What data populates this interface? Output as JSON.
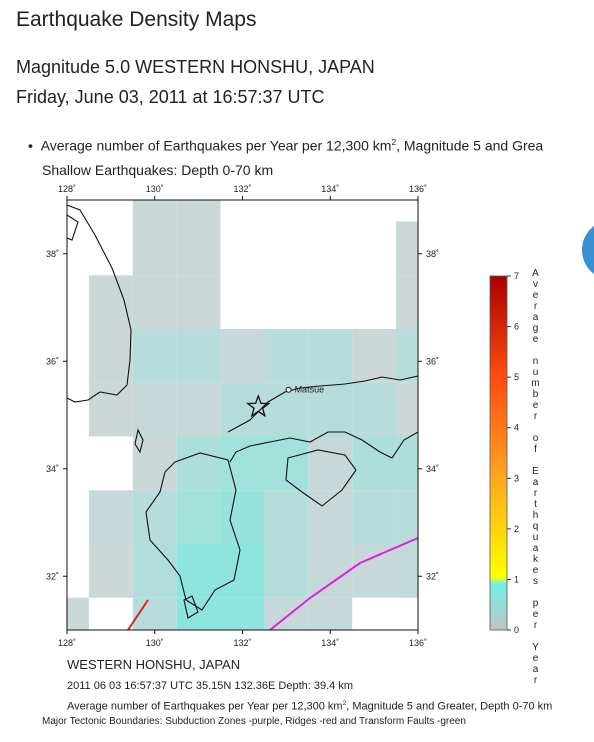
{
  "header": {
    "title": "Earthquake Density Maps",
    "subtitle": "Magnitude 5.0 WESTERN HONSHU, JAPAN",
    "datetime": "Friday, June 03, 2011 at 16:57:37 UTC"
  },
  "intro": {
    "text_before": "Average number of Earthquakes per Year per 12,300 km",
    "sup": "2",
    "text_after": ", Magnitude 5 and Grea",
    "depth": "Shallow Earthquakes: Depth 0-70 km"
  },
  "map": {
    "xlim": [
      128,
      136
    ],
    "ylim": [
      31,
      39
    ],
    "xticks": [
      {
        "value": 128,
        "label": "128˚"
      },
      {
        "value": 130,
        "label": "130˚"
      },
      {
        "value": 132,
        "label": "132˚"
      },
      {
        "value": 134,
        "label": "134˚"
      },
      {
        "value": 136,
        "label": "136˚"
      }
    ],
    "yticks": [
      {
        "value": 32,
        "label": "32˚"
      },
      {
        "value": 34,
        "label": "34˚"
      },
      {
        "value": 36,
        "label": "36˚"
      },
      {
        "value": 38,
        "label": "38˚"
      }
    ],
    "place": {
      "name": "Matsue",
      "lon": 133.05,
      "lat": 35.47
    },
    "epicenter": {
      "lon": 132.36,
      "lat": 35.15
    },
    "cells": [
      {
        "lon": 130,
        "lat": 39.1,
        "value": 0.1
      },
      {
        "lon": 131,
        "lat": 39.1,
        "value": 0.1
      },
      {
        "lon": 130,
        "lat": 38.1,
        "value": 0.1
      },
      {
        "lon": 131,
        "lat": 38.1,
        "value": 0.1
      },
      {
        "lon": 136,
        "lat": 38.1,
        "value": 0.1
      },
      {
        "lon": 129,
        "lat": 37.1,
        "value": 0.1
      },
      {
        "lon": 130,
        "lat": 37.1,
        "value": 0.1
      },
      {
        "lon": 131,
        "lat": 37.1,
        "value": 0.1
      },
      {
        "lon": 136,
        "lat": 37.1,
        "value": 0.1
      },
      {
        "lon": 129,
        "lat": 36.1,
        "value": 0.1
      },
      {
        "lon": 130,
        "lat": 36.1,
        "value": 0.3
      },
      {
        "lon": 131,
        "lat": 36.1,
        "value": 0.3
      },
      {
        "lon": 132,
        "lat": 36.1,
        "value": 0.15
      },
      {
        "lon": 133,
        "lat": 36.1,
        "value": 0.3
      },
      {
        "lon": 134,
        "lat": 36.1,
        "value": 0.3
      },
      {
        "lon": 135,
        "lat": 36.1,
        "value": 0.1
      },
      {
        "lon": 136,
        "lat": 36.1,
        "value": 0.3
      },
      {
        "lon": 129,
        "lat": 35.1,
        "value": 0.1
      },
      {
        "lon": 130,
        "lat": 35.1,
        "value": 0.15
      },
      {
        "lon": 131,
        "lat": 35.1,
        "value": 0.15
      },
      {
        "lon": 132,
        "lat": 35.1,
        "value": 0.3
      },
      {
        "lon": 133,
        "lat": 35.1,
        "value": 0.3
      },
      {
        "lon": 134,
        "lat": 35.1,
        "value": 0.3
      },
      {
        "lon": 135,
        "lat": 35.1,
        "value": 0.3
      },
      {
        "lon": 136,
        "lat": 35.1,
        "value": 0.1
      },
      {
        "lon": 130,
        "lat": 34.1,
        "value": 0.1
      },
      {
        "lon": 131,
        "lat": 34.1,
        "value": 0.4
      },
      {
        "lon": 132,
        "lat": 34.1,
        "value": 0.5
      },
      {
        "lon": 133,
        "lat": 34.1,
        "value": 0.5
      },
      {
        "lon": 134,
        "lat": 34.1,
        "value": 0.15
      },
      {
        "lon": 135,
        "lat": 34.1,
        "value": 0.4
      },
      {
        "lon": 136,
        "lat": 34.1,
        "value": 0.4
      },
      {
        "lon": 129,
        "lat": 33.1,
        "value": 0.15
      },
      {
        "lon": 130,
        "lat": 33.1,
        "value": 0.3
      },
      {
        "lon": 131,
        "lat": 33.1,
        "value": 0.5
      },
      {
        "lon": 132,
        "lat": 33.1,
        "value": 0.6
      },
      {
        "lon": 133,
        "lat": 33.1,
        "value": 0.3
      },
      {
        "lon": 134,
        "lat": 33.1,
        "value": 0.15
      },
      {
        "lon": 135,
        "lat": 33.1,
        "value": 0.3
      },
      {
        "lon": 136,
        "lat": 33.1,
        "value": 0.3
      },
      {
        "lon": 129,
        "lat": 32.1,
        "value": 0.1
      },
      {
        "lon": 130,
        "lat": 32.1,
        "value": 0.35
      },
      {
        "lon": 131,
        "lat": 32.1,
        "value": 0.7
      },
      {
        "lon": 132,
        "lat": 32.1,
        "value": 0.7
      },
      {
        "lon": 133,
        "lat": 32.1,
        "value": 0.3
      },
      {
        "lon": 134,
        "lat": 32.1,
        "value": 0.15
      },
      {
        "lon": 135,
        "lat": 32.1,
        "value": 0.15
      },
      {
        "lon": 136,
        "lat": 32.1,
        "value": 0.2
      },
      {
        "lon": 128,
        "lat": 31.1,
        "value": 0.1
      },
      {
        "lon": 130,
        "lat": 31.1,
        "value": 0.3
      },
      {
        "lon": 131,
        "lat": 31.1,
        "value": 0.7
      },
      {
        "lon": 132,
        "lat": 31.1,
        "value": 0.7
      },
      {
        "lon": 133,
        "lat": 31.1,
        "value": 0.15
      },
      {
        "lon": 134,
        "lat": 31.1,
        "value": 0.15
      }
    ]
  },
  "colorbar": {
    "title": "Average number of Earthquakes per Year",
    "lim": [
      0,
      7
    ],
    "ticks": [
      0,
      1,
      2,
      3,
      4,
      5,
      6,
      7
    ]
  },
  "caption": {
    "region": "WESTERN HONSHU, JAPAN",
    "event": "2011 06 03 16:57:37 UTC 35.15N 132.36E Depth: 39.4 km",
    "note_before": "Average number of Earthquakes per Year per 12,300 km",
    "note_sup": "2",
    "note_after": ", Magnitude 5 and Greater, Depth 0-70 km",
    "boundaries": "Major Tectonic Boundaries: Subduction Zones -purple, Ridges -red and Transform Faults -green"
  }
}
